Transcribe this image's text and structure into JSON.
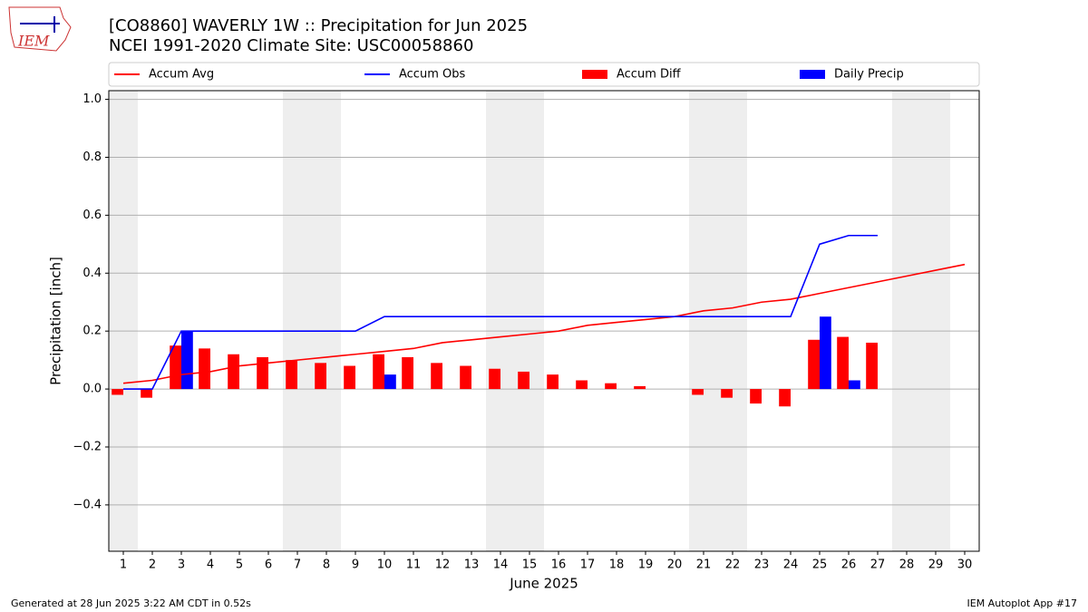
{
  "logo_text": "IEM",
  "footer": {
    "left": "Generated at 28 Jun 2025 3:22 AM CDT in 0.52s",
    "right": "IEM Autoplot App #17"
  },
  "chart_data": {
    "type": "bar-line",
    "title": "[CO8860] WAVERLY 1W :: Precipitation for Jun 2025",
    "subtitle": "NCEI 1991-2020 Climate Site: USC00058860",
    "x_label": "June 2025",
    "y_label": "Precipitation [inch]",
    "x": [
      1,
      2,
      3,
      4,
      5,
      6,
      7,
      8,
      9,
      10,
      11,
      12,
      13,
      14,
      15,
      16,
      17,
      18,
      19,
      20,
      21,
      22,
      23,
      24,
      25,
      26,
      27,
      28,
      29,
      30
    ],
    "xlim": [
      0.5,
      30.5
    ],
    "xticks": [
      1,
      2,
      3,
      4,
      5,
      6,
      7,
      8,
      9,
      10,
      11,
      12,
      13,
      14,
      15,
      16,
      17,
      18,
      19,
      20,
      21,
      22,
      23,
      24,
      25,
      26,
      27,
      28,
      29,
      30
    ],
    "ylim": [
      -0.56,
      1.03
    ],
    "yticks": [
      {
        "value": -0.4,
        "label": "−0.4"
      },
      {
        "value": -0.2,
        "label": "−0.2"
      },
      {
        "value": 0,
        "label": "0.0"
      },
      0.2,
      0.4,
      0.6,
      0.8,
      {
        "value": 1,
        "label": "1.0"
      }
    ],
    "grid": true,
    "shaded_bands": [
      [
        0.5,
        1.5
      ],
      [
        6.5,
        8.5
      ],
      [
        13.5,
        15.5
      ],
      [
        20.5,
        22.5
      ],
      [
        27.5,
        29.5
      ]
    ],
    "shade_color": "#eeeeee",
    "series": [
      {
        "name": "Accum Avg",
        "kind": "line",
        "color": "#ff0000",
        "values": [
          0.02,
          0.03,
          0.05,
          0.06,
          0.08,
          0.09,
          0.1,
          0.11,
          0.12,
          0.13,
          0.14,
          0.16,
          0.17,
          0.18,
          0.19,
          0.2,
          0.22,
          0.23,
          0.24,
          0.25,
          0.27,
          0.28,
          0.3,
          0.31,
          0.33,
          0.35,
          0.37,
          0.39,
          0.41,
          0.43
        ]
      },
      {
        "name": "Accum Obs",
        "kind": "line",
        "color": "#0000ff",
        "values": [
          0,
          0,
          0.2,
          0.2,
          0.2,
          0.2,
          0.2,
          0.2,
          0.2,
          0.25,
          0.25,
          0.25,
          0.25,
          0.25,
          0.25,
          0.25,
          0.25,
          0.25,
          0.25,
          0.25,
          0.25,
          0.25,
          0.25,
          0.25,
          0.5,
          0.53,
          0.53,
          null,
          null,
          null
        ]
      },
      {
        "name": "Accum Diff",
        "kind": "bar",
        "offset": -0.4,
        "color": "#ff0000",
        "values": [
          -0.02,
          -0.03,
          0.15,
          0.14,
          0.12,
          0.11,
          0.1,
          0.09,
          0.08,
          0.12,
          0.11,
          0.09,
          0.08,
          0.07,
          0.06,
          0.05,
          0.03,
          0.02,
          0.01,
          0,
          -0.02,
          -0.03,
          -0.05,
          -0.06,
          0.17,
          0.18,
          0.16,
          null,
          null,
          null
        ]
      },
      {
        "name": "Daily Precip",
        "kind": "bar",
        "offset": 0,
        "color": "#0000ff",
        "values": [
          0,
          0,
          0.2,
          0,
          0,
          0,
          0,
          0,
          0,
          0.05,
          0,
          0,
          0,
          0,
          0,
          0,
          0,
          0,
          0,
          0,
          0,
          0,
          0,
          0,
          0.25,
          0.03,
          0,
          null,
          null,
          null
        ]
      }
    ]
  }
}
